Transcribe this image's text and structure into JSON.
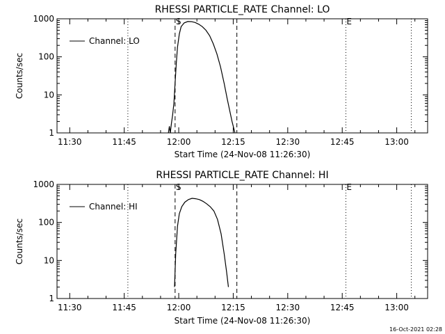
{
  "chart_data": [
    {
      "type": "line",
      "title": "RHESSI PARTICLE_RATE Channel: LO",
      "xlabel": "Start Time (24-Nov-08 11:26:30)",
      "ylabel": "Counts/sec",
      "y_scale": "log",
      "ylim": [
        1,
        1000
      ],
      "xlim": [
        "11:26:30",
        "13:08:30"
      ],
      "x_ticks": [
        "11:30",
        "11:45",
        "12:00",
        "12:15",
        "12:30",
        "12:45",
        "13:00"
      ],
      "y_ticks": [
        "1",
        "10",
        "100",
        "1000"
      ],
      "legend": {
        "position": "top-left",
        "entries": [
          "Channel: LO"
        ]
      },
      "markers": {
        "dashed": [
          "11:59",
          "12:16"
        ],
        "dotted": [
          "11:46",
          "12:46",
          "13:04"
        ],
        "labels": [
          {
            "text": "S",
            "at": "11:59"
          },
          {
            "text": "E",
            "at": "12:46"
          }
        ]
      },
      "series": [
        {
          "name": "Channel: LO",
          "x": [
            "11:57:10",
            "11:57:25",
            "11:57:40",
            "11:58:00",
            "11:58:20",
            "11:58:40",
            "11:59:00",
            "11:59:20",
            "11:59:40",
            "12:00:10",
            "12:00:40",
            "12:01:30",
            "12:02:30",
            "12:03:30",
            "12:04:30",
            "12:05:30",
            "12:06:30",
            "12:07:30",
            "12:08:30",
            "12:09:30",
            "12:10:30",
            "12:11:30",
            "12:12:30",
            "12:13:20",
            "12:14:00",
            "12:14:40",
            "12:15:10",
            "12:15:30"
          ],
          "values": [
            1,
            1.5,
            1,
            1.8,
            3,
            6,
            20,
            70,
            180,
            400,
            620,
            780,
            850,
            840,
            800,
            720,
            620,
            500,
            360,
            220,
            120,
            55,
            20,
            8,
            4,
            2,
            1.3,
            1
          ]
        }
      ]
    },
    {
      "type": "line",
      "title": "RHESSI PARTICLE_RATE Channel: HI",
      "xlabel": "Start Time (24-Nov-08 11:26:30)",
      "ylabel": "Counts/sec",
      "y_scale": "log",
      "ylim": [
        1,
        1000
      ],
      "xlim": [
        "11:26:30",
        "13:08:30"
      ],
      "x_ticks": [
        "11:30",
        "11:45",
        "12:00",
        "12:15",
        "12:30",
        "12:45",
        "13:00"
      ],
      "y_ticks": [
        "1",
        "10",
        "100",
        "1000"
      ],
      "legend": {
        "position": "top-left",
        "entries": [
          "Channel: HI"
        ]
      },
      "markers": {
        "dashed": [
          "11:59",
          "12:16"
        ],
        "dotted": [
          "11:46",
          "12:46",
          "13:04"
        ],
        "labels": [
          {
            "text": "S",
            "at": "11:59"
          },
          {
            "text": "E",
            "at": "12:46"
          }
        ]
      },
      "series": [
        {
          "name": "Channel: HI",
          "x": [
            "11:58:50",
            "11:59:10",
            "11:59:40",
            "12:00:10",
            "12:00:50",
            "12:01:40",
            "12:02:40",
            "12:03:40",
            "12:04:40",
            "12:05:40",
            "12:06:40",
            "12:07:40",
            "12:08:40",
            "12:09:40",
            "12:10:40",
            "12:11:40",
            "12:12:30",
            "12:13:10",
            "12:13:40"
          ],
          "values": [
            2,
            15,
            80,
            170,
            260,
            340,
            400,
            430,
            420,
            400,
            360,
            310,
            260,
            200,
            120,
            50,
            15,
            5,
            2
          ]
        }
      ]
    }
  ],
  "footer": {
    "timestamp": "16-Oct-2021 02:28"
  }
}
